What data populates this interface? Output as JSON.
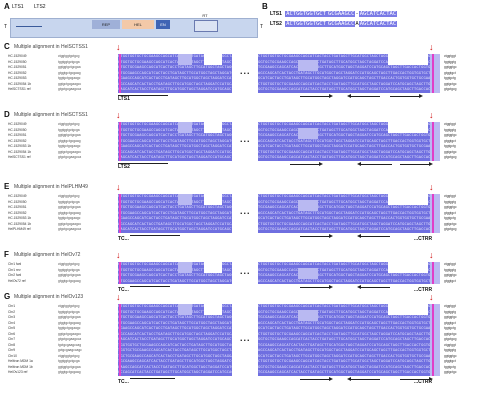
{
  "panels": {
    "A": {
      "label": "A",
      "lts1": "LTS1",
      "lts2": "LTS2",
      "rep": "REP",
      "hel": "HEL",
      "en": "EN",
      "rt": "RT",
      "t_left": "T",
      "t_right": "T"
    },
    "B": {
      "label": "B",
      "row1_name": "LTS1",
      "row1_seq": "ACTGGTGGTGCT",
      "row1_seq2": "GCGAAGCC",
      "row1_seq3": "AGCATCACTAC",
      "row2_name": "LTS2",
      "row2_seq": "ACTGGTGGTGCT",
      "row2_seq2": "GCGAAGCC",
      "row2_seq3": "AGCATCACTAC"
    },
    "C": {
      "label": "C",
      "title": "Multiple alignment in HelSCTSS1",
      "underline": "LTS1",
      "rows": [
        "HC.1529049",
        "HC.1529050",
        "HC.1529051",
        "HC.1529052",
        "HC.1529053",
        "HC.1529054 1b",
        "HelSCTSS1 ref"
      ]
    },
    "D": {
      "label": "D",
      "title": "Multiple alignment in HelSCTSS1",
      "underline": "LTS2",
      "rows": [
        "HC.1529049",
        "HC.1529050",
        "HC.1529051",
        "HC.1529052",
        "HC.1529053 1b",
        "HC.1529054 1b",
        "HelSCTSS1 ref"
      ]
    },
    "E": {
      "label": "E",
      "title": "Multiple alignment in HelPLHM49",
      "left_mark": "TC...",
      "right_mark": "...CTRR",
      "rows": [
        "HC.1529049",
        "HC.1529050",
        "HC.1529051",
        "HC.1529052",
        "HC.1529053 1b",
        "HC.1529054 1b",
        "HelPLHM49 ref"
      ]
    },
    "F": {
      "label": "F",
      "title": "Multiple alignment in HelOv72",
      "left_mark": "TC...",
      "right_mark": "...CTRR",
      "rows": [
        "Chr1 fwd",
        "Chr1 rev",
        "Chr2 fwd",
        "HelOv72 ref"
      ]
    },
    "G": {
      "label": "G",
      "title": "Multiple alignment in HelOv123",
      "left_mark": "TC...",
      "right_mark": "...CTRR",
      "rows": [
        "Chr1",
        "Chr2",
        "Chr3",
        "Chr4",
        "Chr5",
        "Chr6",
        "Chr7",
        "Chr8",
        "Chr9",
        "Chr10",
        "Helitron MDM 1a",
        "Helitron MDM 1b",
        "HelOv123 ref"
      ]
    }
  },
  "colors": {
    "conserved": "#6f6fe0",
    "partial": "#b9b9f2",
    "marker": "#e040c8",
    "arrow": "#d01010"
  },
  "ellipsis": "...",
  "seq_fill": "CTGGTGGTGCTGCGAAGCCAGCATCACTACCTGATAGCTTGCATGGCTAGCTAGGATCCATGCAGCTAGCTTGACCA"
}
